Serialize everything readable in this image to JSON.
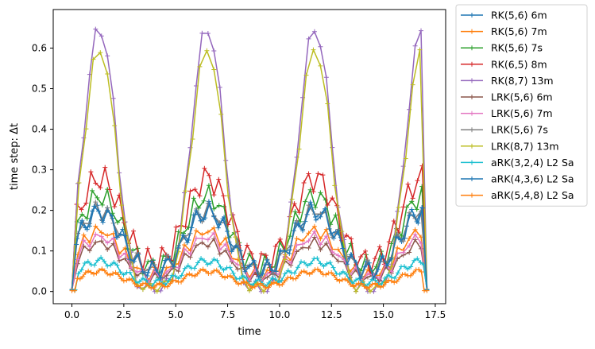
{
  "chart_data": {
    "type": "line",
    "title": "",
    "xlabel": "time",
    "ylabel": "time step: Δt",
    "xlim": [
      -0.9,
      18.0
    ],
    "ylim": [
      -0.03,
      0.695
    ],
    "xticks": [
      0.0,
      2.5,
      5.0,
      7.5,
      10.0,
      12.5,
      15.0,
      17.5
    ],
    "xtick_labels": [
      "0.0",
      "2.5",
      "5.0",
      "7.5",
      "10.0",
      "12.5",
      "15.0",
      "17.5"
    ],
    "yticks": [
      0.0,
      0.1,
      0.2,
      0.3,
      0.4,
      0.5,
      0.6
    ],
    "ytick_labels": [
      "0.0",
      "0.1",
      "0.2",
      "0.3",
      "0.4",
      "0.5",
      "0.6"
    ],
    "grid": false,
    "legend_position": "outside-right",
    "marker": "+",
    "x_end": 17.1,
    "series": [
      {
        "name": "RK(5,6) 6m",
        "color": "#1f77b4",
        "peak": 0.2,
        "base": 0.005,
        "shape": "hump",
        "npts": 70
      },
      {
        "name": "RK(5,6) 7m",
        "color": "#ff7f0e",
        "peak": 0.15,
        "base": 0.005,
        "shape": "hump",
        "npts": 60
      },
      {
        "name": "RK(5,6) 7s",
        "color": "#2ca02c",
        "peak": 0.235,
        "base": 0.005,
        "shape": "hump",
        "npts": 70
      },
      {
        "name": "RK(6,5) 8m",
        "color": "#d62728",
        "peak": 0.28,
        "base": 0.005,
        "shape": "hump",
        "npts": 75
      },
      {
        "name": "RK(8,7) 13m",
        "color": "#9467bd",
        "peak": 0.65,
        "base": 0.005,
        "shape": "spike",
        "npts": 60
      },
      {
        "name": "LRK(5,6) 6m",
        "color": "#8c564b",
        "peak": 0.12,
        "base": 0.005,
        "shape": "hump",
        "npts": 60
      },
      {
        "name": "LRK(5,6) 7m",
        "color": "#e377c2",
        "peak": 0.135,
        "base": 0.005,
        "shape": "hump",
        "npts": 60
      },
      {
        "name": "LRK(5,6) 7s",
        "color": "#7f7f7f",
        "peak": 0.2,
        "base": 0.005,
        "shape": "hump",
        "npts": 60
      },
      {
        "name": "LRK(8,7) 13m",
        "color": "#bcbd22",
        "peak": 0.6,
        "base": 0.005,
        "shape": "spike",
        "npts": 50
      },
      {
        "name": "aRK(3,2,4) L2 Sa",
        "color": "#17becf",
        "peak": 0.075,
        "base": 0.004,
        "shape": "hump",
        "npts": 110
      },
      {
        "name": "aRK(4,3,6) L2 Sa",
        "color": "#1f77b4",
        "peak": 0.195,
        "base": 0.005,
        "shape": "hump",
        "npts": 80
      },
      {
        "name": "aRK(5,4,8) L2 Sa",
        "color": "#ff7f0e",
        "peak": 0.05,
        "base": 0.002,
        "shape": "hump",
        "npts": 130
      }
    ]
  }
}
